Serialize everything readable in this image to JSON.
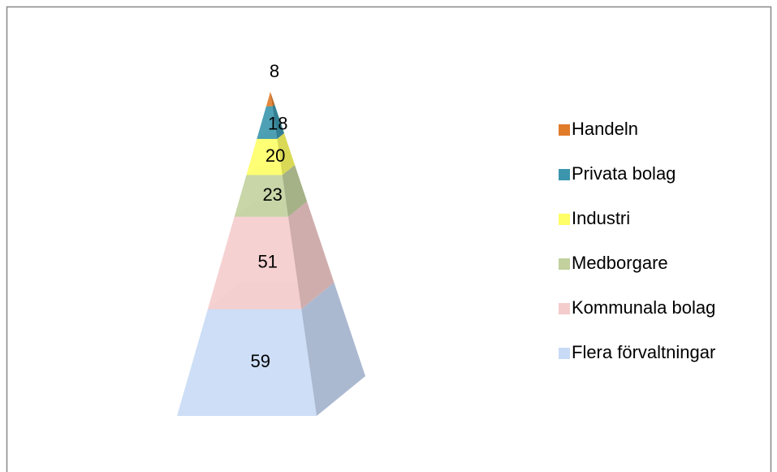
{
  "chart_data": {
    "type": "pyramid",
    "categories": [
      "Handeln",
      "Privata bolag",
      "Industri",
      "Medborgare",
      "Kommunala bolag",
      "Flera förvaltningar"
    ],
    "values": [
      8,
      18,
      20,
      23,
      51,
      59
    ],
    "colors": [
      "#e07b2a",
      "#3b96ad",
      "#ffff66",
      "#c2d19e",
      "#f5cccc",
      "#c8daf5"
    ],
    "legend": "right"
  }
}
